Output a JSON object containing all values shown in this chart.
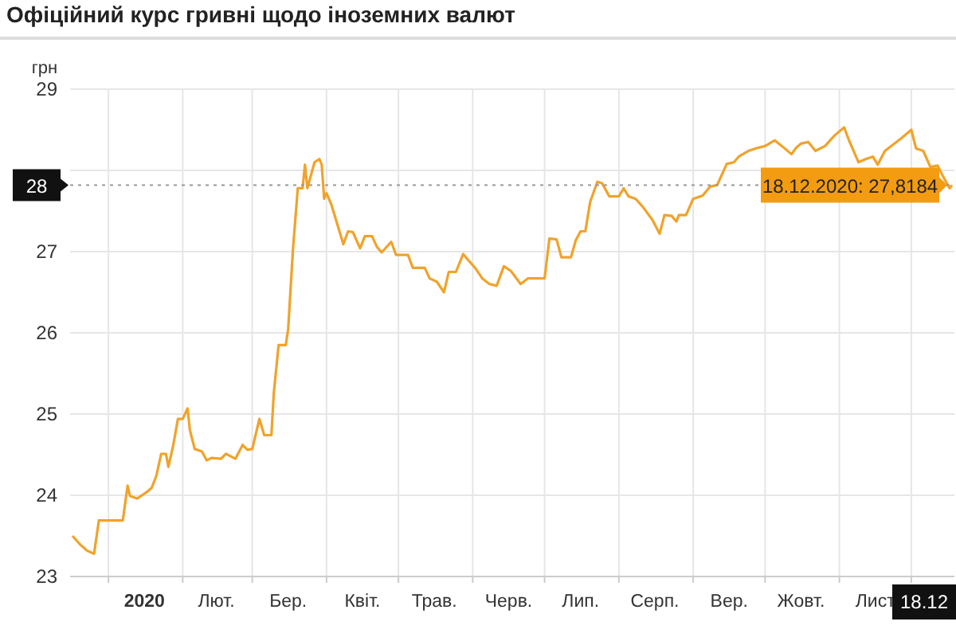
{
  "chart_data": {
    "type": "line",
    "title": "Офіційний курс гривні щодо іноземних валют",
    "ylabel": "грн",
    "xlim": [
      "2019-12-16",
      "2020-12-19"
    ],
    "ylim": [
      23,
      29
    ],
    "yticks": [
      23,
      24,
      25,
      26,
      27,
      {
        "value": 28,
        "label": null
      },
      29
    ],
    "xticks": [
      {
        "value": "2020-01-01",
        "label": null
      },
      {
        "value": "2020-01-16",
        "label": "2020"
      },
      {
        "value": "2020-02-01",
        "label": null
      },
      {
        "value": "2020-02-15",
        "label": "Лют."
      },
      {
        "value": "2020-03-01",
        "label": null
      },
      {
        "value": "2020-03-16",
        "label": "Бер."
      },
      {
        "value": "2020-04-01",
        "label": null
      },
      {
        "value": "2020-04-16",
        "label": "Квіт."
      },
      {
        "value": "2020-05-01",
        "label": null
      },
      {
        "value": "2020-05-16",
        "label": "Трав."
      },
      {
        "value": "2020-06-01",
        "label": null
      },
      {
        "value": "2020-06-16",
        "label": "Черв."
      },
      {
        "value": "2020-07-01",
        "label": null
      },
      {
        "value": "2020-07-16",
        "label": "Лип."
      },
      {
        "value": "2020-08-01",
        "label": null
      },
      {
        "value": "2020-08-16",
        "label": "Серп."
      },
      {
        "value": "2020-09-01",
        "label": null
      },
      {
        "value": "2020-09-16",
        "label": "Вер."
      },
      {
        "value": "2020-10-01",
        "label": null
      },
      {
        "value": "2020-10-16",
        "label": "Жовт."
      },
      {
        "value": "2020-11-01",
        "label": null
      },
      {
        "value": "2020-11-16",
        "label": "Лист"
      },
      {
        "value": "2020-12-01",
        "label": null
      },
      {
        "value": "2020-12-18",
        "label": "18.12"
      }
    ],
    "grid": true,
    "marker": "none",
    "line_style": "solid",
    "x": [
      "2019-12-17",
      "2019-12-20",
      "2019-12-23",
      "2019-12-26",
      "2019-12-28",
      "2020-01-07",
      "2020-01-09",
      "2020-01-10",
      "2020-01-13",
      "2020-01-15",
      "2020-01-17",
      "2020-01-19",
      "2020-01-21",
      "2020-01-23",
      "2020-01-25",
      "2020-01-26",
      "2020-01-28",
      "2020-01-30",
      "2020-02-01",
      "2020-02-03",
      "2020-02-04",
      "2020-02-06",
      "2020-02-09",
      "2020-02-11",
      "2020-02-13",
      "2020-02-17",
      "2020-02-19",
      "2020-02-23",
      "2020-02-26",
      "2020-02-28",
      "2020-03-01",
      "2020-03-04",
      "2020-03-06",
      "2020-03-09",
      "2020-03-10",
      "2020-03-12",
      "2020-03-15",
      "2020-03-16",
      "2020-03-18",
      "2020-03-20",
      "2020-03-22",
      "2020-03-23",
      "2020-03-24",
      "2020-03-27",
      "2020-03-29",
      "2020-03-30",
      "2020-03-31",
      "2020-04-01",
      "2020-04-03",
      "2020-04-06",
      "2020-04-08",
      "2020-04-10",
      "2020-04-12",
      "2020-04-15",
      "2020-04-17",
      "2020-04-20",
      "2020-04-22",
      "2020-04-24",
      "2020-04-28",
      "2020-04-30",
      "2020-05-05",
      "2020-05-07",
      "2020-05-12",
      "2020-05-14",
      "2020-05-17",
      "2020-05-20",
      "2020-05-22",
      "2020-05-25",
      "2020-05-28",
      "2020-05-30",
      "2020-06-02",
      "2020-06-05",
      "2020-06-08",
      "2020-06-11",
      "2020-06-14",
      "2020-06-17",
      "2020-06-21",
      "2020-06-24",
      "2020-07-01",
      "2020-07-03",
      "2020-07-06",
      "2020-07-08",
      "2020-07-12",
      "2020-07-14",
      "2020-07-16",
      "2020-07-18",
      "2020-07-20",
      "2020-07-23",
      "2020-07-25",
      "2020-07-28",
      "2020-08-01",
      "2020-08-03",
      "2020-08-05",
      "2020-08-08",
      "2020-08-11",
      "2020-08-15",
      "2020-08-18",
      "2020-08-20",
      "2020-08-23",
      "2020-08-25",
      "2020-08-26",
      "2020-08-29",
      "2020-09-01",
      "2020-09-05",
      "2020-09-08",
      "2020-09-11",
      "2020-09-15",
      "2020-09-18",
      "2020-09-20",
      "2020-09-24",
      "2020-09-27",
      "2020-10-01",
      "2020-10-05",
      "2020-10-08",
      "2020-10-12",
      "2020-10-14",
      "2020-10-16",
      "2020-10-19",
      "2020-10-22",
      "2020-10-26",
      "2020-10-30",
      "2020-11-03",
      "2020-11-05",
      "2020-11-09",
      "2020-11-12",
      "2020-11-15",
      "2020-11-17",
      "2020-11-20",
      "2020-11-24",
      "2020-11-27",
      "2020-12-01",
      "2020-12-03",
      "2020-12-06",
      "2020-12-09",
      "2020-12-12",
      "2020-12-14",
      "2020-12-17",
      "2020-12-18"
    ],
    "series": [
      {
        "color": "#f0a32a",
        "values": [
          23.5,
          23.4,
          23.32,
          23.28,
          23.69,
          23.69,
          24.12,
          23.99,
          23.96,
          24.0,
          24.04,
          24.09,
          24.24,
          24.51,
          24.51,
          24.35,
          24.61,
          24.94,
          24.94,
          25.07,
          24.8,
          24.57,
          24.54,
          24.43,
          24.46,
          24.45,
          24.51,
          24.45,
          24.62,
          24.56,
          24.57,
          24.94,
          24.74,
          24.74,
          25.26,
          25.85,
          25.85,
          26.05,
          27.03,
          27.78,
          27.78,
          28.07,
          27.78,
          28.1,
          28.14,
          28.07,
          27.65,
          27.72,
          27.58,
          27.29,
          27.09,
          27.25,
          27.24,
          27.04,
          27.19,
          27.19,
          27.06,
          26.99,
          27.12,
          26.96,
          26.96,
          26.8,
          26.8,
          26.67,
          26.63,
          26.5,
          26.75,
          26.75,
          26.97,
          26.9,
          26.8,
          26.67,
          26.6,
          26.58,
          26.82,
          26.76,
          26.6,
          26.67,
          26.67,
          27.16,
          27.15,
          26.93,
          26.93,
          27.14,
          27.25,
          27.25,
          27.61,
          27.86,
          27.84,
          27.68,
          27.68,
          27.78,
          27.68,
          27.65,
          27.55,
          27.39,
          27.22,
          27.45,
          27.44,
          27.37,
          27.45,
          27.45,
          27.65,
          27.69,
          27.8,
          27.82,
          28.08,
          28.1,
          28.17,
          28.24,
          28.27,
          28.3,
          28.37,
          28.3,
          28.2,
          28.28,
          28.33,
          28.35,
          28.24,
          28.3,
          28.43,
          28.53,
          28.37,
          28.1,
          28.14,
          28.17,
          28.07,
          28.24,
          28.33,
          28.4,
          28.5,
          28.27,
          28.24,
          28.04,
          28.06,
          27.94,
          27.78,
          27.8184
        ]
      }
    ],
    "ref_lines": [
      {
        "axis": "y",
        "value": 27.8184,
        "label": "28",
        "line_style": "dotted"
      }
    ],
    "annotations": [
      {
        "text": "18.12.2020: 27,8184",
        "x": "2020-12-18",
        "y": 27.8184
      }
    ]
  }
}
